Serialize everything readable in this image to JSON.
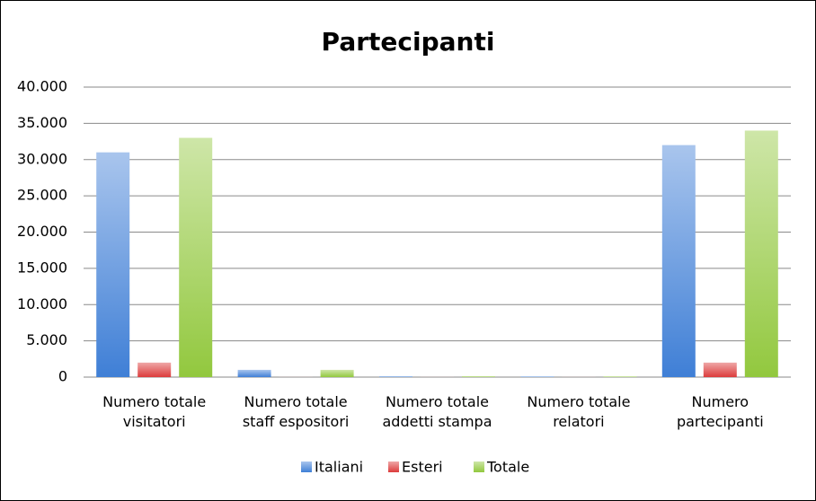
{
  "chart_data": {
    "type": "bar",
    "title": "Partecipanti",
    "categories": [
      "Numero totale visitatori",
      "Numero totale staff espositori",
      "Numero totale addetti stampa",
      "Numero totale relatori",
      "Numero partecipanti"
    ],
    "series": [
      {
        "name": "Italiani",
        "color": "#3f7fd6",
        "values": [
          31000,
          1000,
          100,
          80,
          32000
        ]
      },
      {
        "name": "Esteri",
        "color": "#dc3c3c",
        "values": [
          2000,
          10,
          10,
          10,
          2000
        ]
      },
      {
        "name": "Totale",
        "color": "#92c83e",
        "values": [
          33000,
          1000,
          110,
          90,
          34000
        ]
      }
    ],
    "ylim": [
      0,
      40000
    ],
    "yticks": [
      0,
      {
        "value": 5000,
        "label": "5.000"
      },
      {
        "value": 10000,
        "label": "10.000"
      },
      {
        "value": 15000,
        "label": "15.000"
      },
      {
        "value": 20000,
        "label": "20.000"
      },
      {
        "value": 25000,
        "label": "25.000"
      },
      {
        "value": 30000,
        "label": "30.000"
      },
      {
        "value": 35000,
        "label": "35.000"
      },
      {
        "value": 40000,
        "label": "40.000"
      }
    ],
    "grid": true
  }
}
